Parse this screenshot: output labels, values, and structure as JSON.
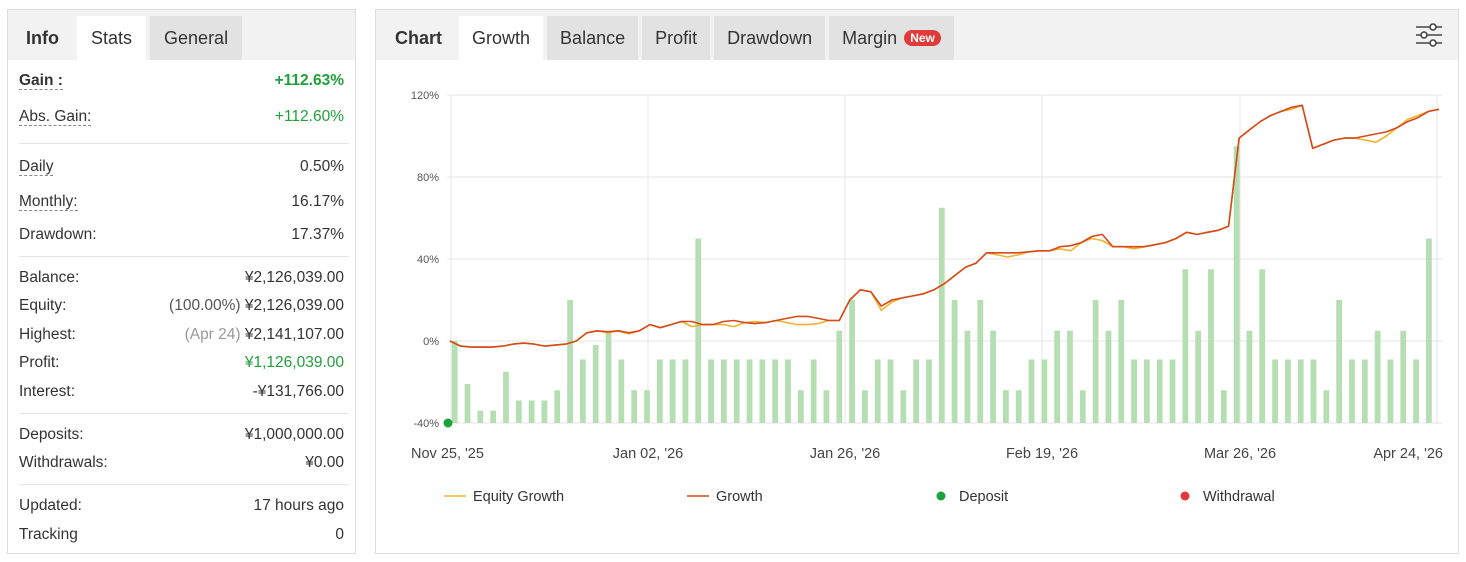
{
  "left": {
    "tabs": [
      "Info",
      "Stats",
      "General"
    ],
    "gain": {
      "label": "Gain :",
      "value": "+112.63%"
    },
    "abs_gain": {
      "label": "Abs. Gain:",
      "value": "+112.60%"
    },
    "daily": {
      "label": "Daily",
      "value": "0.50%"
    },
    "monthly": {
      "label": "Monthly:",
      "value": "16.17%"
    },
    "drawdown": {
      "label": "Drawdown:",
      "value": "17.37%"
    },
    "balance": {
      "label": "Balance:",
      "value": "¥2,126,039.00"
    },
    "equity": {
      "label": "Equity:",
      "prefix": "(100.00%)",
      "value": "¥2,126,039.00"
    },
    "highest": {
      "label": "Highest:",
      "prefix": "(Apr 24)",
      "value": "¥2,141,107.00"
    },
    "profit": {
      "label": "Profit:",
      "value": "¥1,126,039.00"
    },
    "interest": {
      "label": "Interest:",
      "value": "-¥131,766.00"
    },
    "deposits": {
      "label": "Deposits:",
      "value": "¥1,000,000.00"
    },
    "withdrawals": {
      "label": "Withdrawals:",
      "value": "¥0.00"
    },
    "updated": {
      "label": "Updated:",
      "value": "17 hours ago"
    },
    "tracking": {
      "label": "Tracking",
      "value": "0"
    }
  },
  "right": {
    "tabs": [
      "Chart",
      "Growth",
      "Balance",
      "Profit",
      "Drawdown",
      "Margin"
    ],
    "badge": "New",
    "settings_icon": "sliders-icon"
  },
  "colors": {
    "equity": "#f2b32e",
    "growth": "#d44a1c",
    "bar": "#b5dfb2",
    "deposit": "#1aa33a",
    "withdrawal": "#e03a3a",
    "green_text": "#20a03c"
  },
  "chart_data": {
    "type": "line",
    "y_ticks": [
      "120%",
      "80%",
      "40%",
      "0%",
      "-40%"
    ],
    "ylim": [
      -40,
      120
    ],
    "x_ticks": [
      "Nov 25, '25",
      "Jan 02, '26",
      "Jan 26, '26",
      "Feb 19, '26",
      "Mar 26, '26",
      "Apr 24, '26"
    ],
    "legend": [
      "Equity Growth",
      "Growth",
      "Deposit",
      "Withdrawal"
    ],
    "series": [
      {
        "name": "Growth",
        "values": [
          0,
          -2.5,
          -3,
          -3,
          -3,
          -2.5,
          -1.5,
          -1,
          -1.5,
          -2.5,
          -2,
          -1.5,
          0,
          4,
          5,
          4.5,
          5,
          4,
          5,
          8,
          6.5,
          8,
          9.5,
          9.5,
          8,
          8,
          9.5,
          10,
          9,
          8.5,
          9,
          10,
          11,
          12,
          12,
          11,
          10,
          10,
          20,
          25,
          24,
          17,
          20,
          21,
          22,
          23,
          25,
          28,
          32,
          36,
          38,
          43,
          43,
          43,
          43,
          43.5,
          44,
          44,
          46,
          46.5,
          48,
          51,
          52,
          46,
          46,
          46,
          46,
          47,
          48,
          50,
          53,
          52,
          53,
          54,
          56,
          99,
          103,
          107,
          110,
          112,
          114,
          115,
          94,
          96,
          98,
          99,
          99,
          100,
          101,
          102,
          104,
          107,
          109,
          112,
          113
        ]
      },
      {
        "name": "Equity Growth",
        "values": [
          0,
          -2.5,
          -3,
          -3,
          -3,
          -2.5,
          -1.5,
          -1,
          -1.5,
          -2.5,
          -2,
          -1.5,
          0,
          4,
          5,
          4,
          5,
          3.5,
          5,
          8,
          6.5,
          8,
          9.5,
          7,
          8,
          8,
          8,
          7,
          9,
          9.5,
          9,
          10,
          9,
          8,
          8,
          8.5,
          10,
          10,
          20,
          25,
          24,
          15,
          19,
          21,
          22,
          23,
          25,
          28,
          32,
          36,
          38,
          43,
          42,
          41,
          42,
          43.5,
          44,
          44,
          45,
          44,
          48,
          50,
          49,
          46,
          46,
          45,
          46,
          47,
          48,
          50,
          53,
          52,
          53,
          54,
          56,
          99,
          103,
          107,
          110,
          112,
          113,
          115,
          94,
          96,
          98,
          99,
          99,
          98,
          97,
          100,
          104,
          108,
          110,
          112,
          113
        ]
      },
      {
        "name": "Daily bars",
        "values": [
          0,
          -21,
          -34,
          -34,
          -15,
          -29,
          -29,
          -29,
          -24,
          20,
          -9,
          -2,
          5,
          -9,
          -24,
          -24,
          -9,
          -9,
          -9,
          50,
          -9,
          -9,
          -9,
          -9,
          -9,
          -9,
          -9,
          -24,
          -9,
          -24,
          5,
          20,
          -24,
          -9,
          -9,
          -24,
          -9,
          -9,
          65,
          20,
          5,
          20,
          5,
          -24,
          -24,
          -9,
          -9,
          5,
          5,
          -24,
          20,
          5,
          20,
          -9,
          -9,
          -9,
          -9,
          35,
          5,
          35,
          -24,
          95,
          5,
          35,
          -9,
          -9,
          -9,
          -9,
          -24,
          20,
          -9,
          -9,
          5,
          -9,
          5,
          -9,
          50
        ]
      }
    ],
    "deposit_marker": {
      "x": "Nov 25, '25",
      "value": -40
    }
  }
}
